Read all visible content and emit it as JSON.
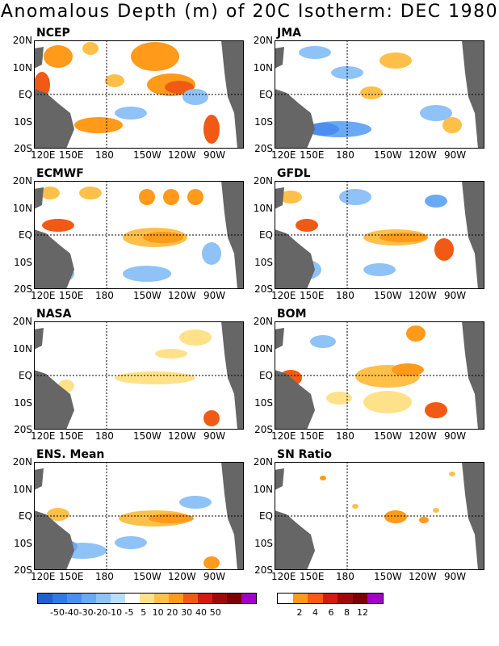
{
  "title": "Anomalous Depth (m) of 20C Isotherm: DEC 1980",
  "lat_labels": [
    "20N",
    "10N",
    "EQ",
    "10S",
    "20S"
  ],
  "lon_labels": [
    "120E",
    "150E",
    "180",
    "150W",
    "120W",
    "90W"
  ],
  "panels": [
    {
      "name": "NCEP"
    },
    {
      "name": "JMA"
    },
    {
      "name": "ECMWF"
    },
    {
      "name": "GFDL"
    },
    {
      "name": "NASA"
    },
    {
      "name": "BOM"
    },
    {
      "name": "ENS. Mean"
    },
    {
      "name": "SN Ratio"
    }
  ],
  "legend_anomaly": {
    "ticks": [
      "-50",
      "-40",
      "-30",
      "-20",
      "-10",
      "-5",
      "5",
      "10",
      "20",
      "30",
      "40",
      "50"
    ],
    "colors": [
      "#1f5fd1",
      "#2f7ae6",
      "#4a8ff0",
      "#6aa9f4",
      "#8fc2f6",
      "#b9def9",
      "#ffffff",
      "#ffe18a",
      "#ffc04a",
      "#ff9a1a",
      "#f05a14",
      "#d21b12",
      "#9c0a0a",
      "#7a0000",
      "#a000c8"
    ]
  },
  "legend_snr": {
    "ticks": [
      "2",
      "4",
      "6",
      "8",
      "12"
    ],
    "colors": [
      "#ffffff",
      "#ff9a1a",
      "#ff5a10",
      "#d21b12",
      "#9c0a0a",
      "#7a0000",
      "#a000c8"
    ]
  },
  "colors": {
    "land": "#666666",
    "warm": "#ffc04a",
    "cool": "#8fc2f6"
  }
}
